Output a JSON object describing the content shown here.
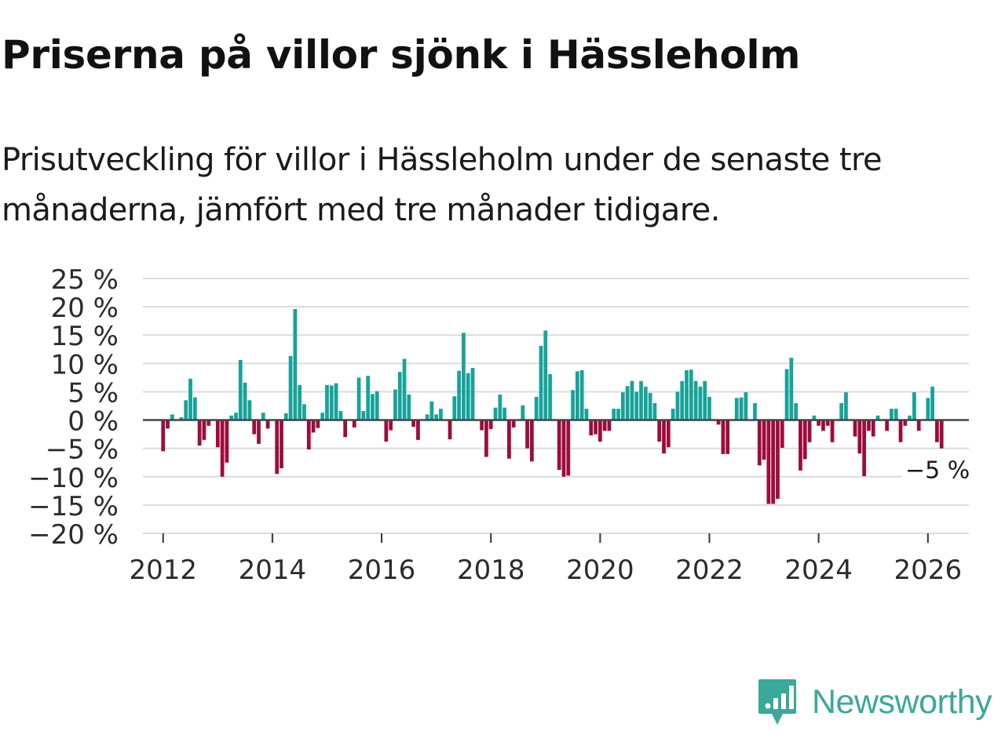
{
  "title": "Priserna på villor sjönk i Hässleholm",
  "subtitle": "Prisutveckling för villor i Hässleholm under de senaste tre månaderna, jämfört med tre månader tidigare.",
  "brand": {
    "name": "Newsworthy"
  },
  "colors": {
    "positive": "#16a39a",
    "negative": "#9e0b3c",
    "grid": "#dcdcdc",
    "zero": "#444444",
    "brand": "#3aa89a"
  },
  "chart_data": {
    "type": "bar",
    "title": "Priserna på villor sjönk i Hässleholm",
    "ylabel": "",
    "xlabel": "",
    "ylim": [
      -20,
      25
    ],
    "y_ticks": [
      25,
      20,
      15,
      10,
      5,
      0,
      -5,
      -10,
      -15,
      -20
    ],
    "y_tick_labels": [
      "25 %",
      "20 %",
      "15 %",
      "10 %",
      "5 %",
      "0 %",
      "−5 %",
      "−10 %",
      "−15 %",
      "−20 %"
    ],
    "x_range": [
      2011.63,
      2026.75
    ],
    "x_ticks": [
      2012,
      2014,
      2016,
      2018,
      2020,
      2022,
      2024,
      2026
    ],
    "x_tick_labels": [
      "2012",
      "2014",
      "2016",
      "2018",
      "2020",
      "2022",
      "2024",
      "2026"
    ],
    "start": {
      "year": 2012,
      "month": 1
    },
    "values": [
      -5.5,
      -1.5,
      1,
      0,
      0.5,
      3.5,
      7.3,
      4,
      -4.5,
      -3.5,
      -1,
      0,
      -4.8,
      -10,
      -7.5,
      0.8,
      1.3,
      10.6,
      6.6,
      3.5,
      -2.5,
      -4.2,
      1.3,
      -1.5,
      0,
      -9.5,
      -8.5,
      1.2,
      11.3,
      19.6,
      6.2,
      2.8,
      -5.2,
      -2.2,
      -1.4,
      1.3,
      6.2,
      6.1,
      6.5,
      1.6,
      -3,
      0,
      -1.3,
      7.5,
      1.6,
      7.8,
      4.6,
      5.1,
      0,
      -3.8,
      -1.8,
      5.4,
      8.5,
      10.8,
      4.5,
      -1.2,
      -3.5,
      0,
      1,
      3.3,
      1,
      2,
      0,
      -3.4,
      4.2,
      8.7,
      15.4,
      8.3,
      9.2,
      0,
      -1.8,
      -6.5,
      -1.6,
      2.2,
      4.5,
      2.2,
      -6.8,
      -1.3,
      0,
      2.6,
      -5,
      -7.3,
      4.1,
      13.1,
      15.8,
      8.1,
      0,
      -8.8,
      -10,
      -9.8,
      5.3,
      8.6,
      8.8,
      2,
      -2.7,
      -2.5,
      -3.8,
      -1.9,
      -1.9,
      2,
      2,
      4.9,
      6,
      6.9,
      5,
      6.9,
      5.9,
      4.8,
      3,
      -3.8,
      -5.9,
      -4.8,
      2,
      5,
      6.9,
      8.8,
      8.9,
      6.9,
      5.9,
      6.9,
      4.1,
      0,
      -0.8,
      -6,
      -6,
      0,
      3.9,
      4,
      4.9,
      0,
      3,
      -8,
      -7,
      -14.8,
      -14.8,
      -13.9,
      -4.9,
      9,
      11,
      3,
      -8.9,
      -6.9,
      -3.9,
      0.8,
      -1,
      -1.9,
      -1,
      -3.9,
      0,
      3,
      4.9,
      0,
      -2.9,
      -5.9,
      -9.9,
      -1.9,
      -2.9,
      0.8,
      0,
      -1.9,
      2,
      2,
      -3.9,
      -1,
      0.8,
      4.9,
      -1.9,
      0,
      3.9,
      5.9,
      -3.9,
      -5
    ]
  },
  "annotation": {
    "label": "−5 %",
    "value": -5
  }
}
